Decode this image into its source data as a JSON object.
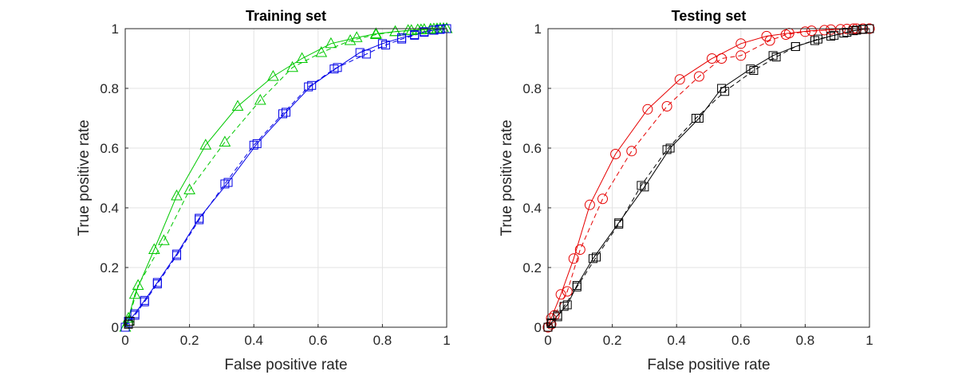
{
  "chart_data": [
    {
      "type": "line",
      "title": "Training set",
      "xlabel": "False positive rate",
      "ylabel": "True positive rate",
      "xlim": [
        0,
        1
      ],
      "ylim": [
        0,
        1
      ],
      "grid": true,
      "xticks": [
        0,
        0.2,
        0.4,
        0.6,
        0.8,
        1
      ],
      "yticks": [
        0,
        0.2,
        0.4,
        0.6,
        0.8,
        1
      ],
      "xtick_labels": [
        "0",
        "0.2",
        "0.4",
        "0.6",
        "0.8",
        "1"
      ],
      "ytick_labels": [
        "0",
        "0.2",
        "0.4",
        "0.6",
        "0.8",
        "1"
      ],
      "series": [
        {
          "name": "green solid (triangles)",
          "color": "#00c800",
          "linestyle": "solid",
          "marker": "triangle",
          "x": [
            0,
            0.01,
            0.03,
            0.09,
            0.16,
            0.25,
            0.35,
            0.46,
            0.55,
            0.64,
            0.72,
            0.78,
            0.84,
            0.88,
            0.91,
            0.93,
            0.95,
            0.96,
            0.97,
            0.98,
            0.99,
            1
          ],
          "y": [
            0,
            0.03,
            0.11,
            0.26,
            0.44,
            0.61,
            0.74,
            0.84,
            0.9,
            0.95,
            0.97,
            0.983,
            0.99,
            0.994,
            0.996,
            0.997,
            0.998,
            0.999,
            0.999,
            1,
            1,
            1
          ]
        },
        {
          "name": "green dashed (triangles)",
          "color": "#00c800",
          "linestyle": "dashed",
          "marker": "triangle",
          "x": [
            0,
            0.01,
            0.04,
            0.12,
            0.2,
            0.31,
            0.42,
            0.52,
            0.61,
            0.7,
            0.78,
            0.84,
            0.89,
            0.92,
            0.95,
            0.97,
            0.98,
            0.99,
            1
          ],
          "y": [
            0,
            0.02,
            0.14,
            0.29,
            0.46,
            0.62,
            0.76,
            0.87,
            0.92,
            0.96,
            0.98,
            0.99,
            0.994,
            0.996,
            0.998,
            0.999,
            1,
            1,
            1
          ]
        },
        {
          "name": "blue solid (squares)",
          "color": "#0000e6",
          "linestyle": "solid",
          "marker": "square",
          "x": [
            0,
            0.01,
            0.03,
            0.06,
            0.1,
            0.16,
            0.23,
            0.32,
            0.41,
            0.5,
            0.58,
            0.66,
            0.73,
            0.8,
            0.86,
            0.9,
            0.93,
            0.96,
            0.98,
            1
          ],
          "y": [
            0,
            0.02,
            0.045,
            0.09,
            0.15,
            0.245,
            0.365,
            0.485,
            0.615,
            0.72,
            0.81,
            0.87,
            0.92,
            0.95,
            0.97,
            0.98,
            0.99,
            0.995,
            0.998,
            1
          ]
        },
        {
          "name": "blue dashed (squares)",
          "color": "#0000e6",
          "linestyle": "dashed",
          "marker": "square",
          "x": [
            0,
            0.01,
            0.03,
            0.06,
            0.1,
            0.16,
            0.23,
            0.31,
            0.4,
            0.49,
            0.57,
            0.65,
            0.75,
            0.81,
            0.86,
            0.9,
            0.93,
            0.96,
            0.98,
            1
          ],
          "y": [
            0,
            0.015,
            0.04,
            0.085,
            0.145,
            0.24,
            0.36,
            0.48,
            0.61,
            0.715,
            0.805,
            0.865,
            0.915,
            0.945,
            0.965,
            0.978,
            0.988,
            0.995,
            0.998,
            1
          ]
        },
        {
          "name": "black squares (near origin)",
          "color": "#000000",
          "linestyle": "none",
          "marker": "square",
          "x": [
            0.01,
            0.015
          ],
          "y": [
            0.01,
            0.02
          ]
        }
      ]
    },
    {
      "type": "line",
      "title": "Testing set",
      "xlabel": "False positive rate",
      "ylabel": "True positive rate",
      "xlim": [
        0,
        1
      ],
      "ylim": [
        0,
        1
      ],
      "grid": true,
      "xticks": [
        0,
        0.2,
        0.4,
        0.6,
        0.8,
        1
      ],
      "yticks": [
        0,
        0.2,
        0.4,
        0.6,
        0.8,
        1
      ],
      "xtick_labels": [
        "0",
        "0.2",
        "0.4",
        "0.6",
        "0.8",
        "1"
      ],
      "ytick_labels": [
        "0",
        "0.2",
        "0.4",
        "0.6",
        "0.8",
        "1"
      ],
      "series": [
        {
          "name": "red solid (circles)",
          "color": "#e60000",
          "linestyle": "solid",
          "marker": "circle",
          "x": [
            0,
            0.01,
            0.04,
            0.08,
            0.13,
            0.21,
            0.31,
            0.41,
            0.51,
            0.6,
            0.68,
            0.75,
            0.82,
            0.88,
            0.93,
            0.96,
            0.98,
            1
          ],
          "y": [
            0,
            0.03,
            0.11,
            0.23,
            0.41,
            0.58,
            0.73,
            0.83,
            0.9,
            0.95,
            0.975,
            0.985,
            0.993,
            0.997,
            0.999,
            1,
            1,
            1
          ]
        },
        {
          "name": "red dashed (circles)",
          "color": "#e60000",
          "linestyle": "dashed",
          "marker": "circle",
          "x": [
            0,
            0.01,
            0.02,
            0.06,
            0.1,
            0.17,
            0.26,
            0.37,
            0.47,
            0.54,
            0.6,
            0.69,
            0.74,
            0.8,
            0.86,
            0.91,
            0.95,
            0.98,
            1
          ],
          "y": [
            0,
            0.01,
            0.04,
            0.12,
            0.26,
            0.43,
            0.59,
            0.74,
            0.84,
            0.9,
            0.91,
            0.96,
            0.98,
            0.99,
            0.995,
            0.998,
            1,
            1,
            1
          ]
        },
        {
          "name": "black solid (squares)",
          "color": "#000000",
          "linestyle": "solid",
          "marker": "square",
          "x": [
            0,
            0.01,
            0.03,
            0.06,
            0.09,
            0.14,
            0.22,
            0.3,
            0.38,
            0.47,
            0.54,
            0.63,
            0.7,
            0.77,
            0.83,
            0.88,
            0.92,
            0.95,
            0.98,
            1
          ],
          "y": [
            0,
            0.015,
            0.04,
            0.075,
            0.14,
            0.23,
            0.35,
            0.47,
            0.6,
            0.7,
            0.8,
            0.865,
            0.91,
            0.94,
            0.96,
            0.975,
            0.985,
            0.993,
            0.998,
            1
          ]
        },
        {
          "name": "black dashed (squares)",
          "color": "#000000",
          "linestyle": "dashed",
          "marker": "square",
          "x": [
            0,
            0.01,
            0.03,
            0.05,
            0.09,
            0.15,
            0.22,
            0.29,
            0.37,
            0.46,
            0.55,
            0.64,
            0.71,
            0.77,
            0.84,
            0.89,
            0.93,
            0.96,
            0.98,
            1
          ],
          "y": [
            0,
            0.012,
            0.035,
            0.07,
            0.135,
            0.235,
            0.345,
            0.475,
            0.595,
            0.7,
            0.79,
            0.86,
            0.905,
            0.94,
            0.965,
            0.978,
            0.988,
            0.995,
            0.998,
            1
          ]
        }
      ]
    }
  ]
}
